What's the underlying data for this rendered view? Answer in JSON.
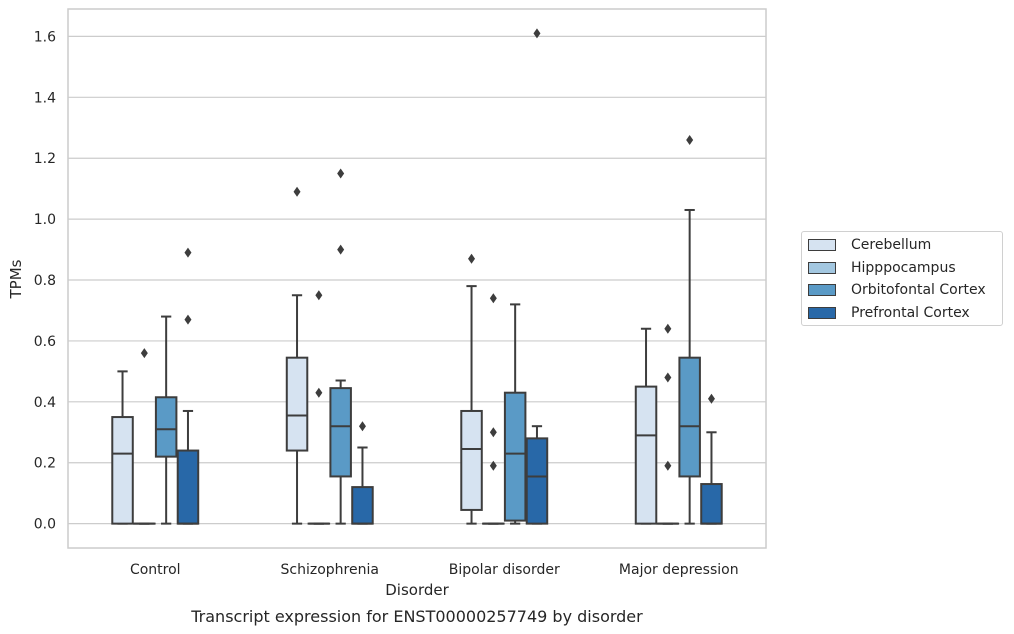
{
  "chart_data": {
    "type": "box",
    "caption": "Transcript expression for ENST00000257749 by disorder",
    "xlabel": "Disorder",
    "ylabel": "TPMs",
    "ylim": [
      -0.08,
      1.69
    ],
    "yticks": [
      0.0,
      0.2,
      0.4,
      0.6,
      0.8,
      1.0,
      1.2,
      1.4,
      1.6
    ],
    "ytick_labels": [
      "0.0",
      "0.2",
      "0.4",
      "0.6",
      "0.8",
      "1.0",
      "1.2",
      "1.4",
      "1.6"
    ],
    "grid": true,
    "legend_position": "right",
    "categories": [
      "Control",
      "Schizophrenia",
      "Bipolar disorder",
      "Major depression"
    ],
    "series": [
      {
        "name": "Cerebellum",
        "color": "#d6e3f1",
        "boxes": [
          {
            "whislo": 0.0,
            "q1": 0.0,
            "med": 0.23,
            "q3": 0.35,
            "whishi": 0.5,
            "fliers": []
          },
          {
            "whislo": 0.0,
            "q1": 0.24,
            "med": 0.355,
            "q3": 0.545,
            "whishi": 0.75,
            "fliers": [
              1.09
            ]
          },
          {
            "whislo": 0.0,
            "q1": 0.045,
            "med": 0.245,
            "q3": 0.37,
            "whishi": 0.78,
            "fliers": [
              0.87
            ]
          },
          {
            "whislo": 0.0,
            "q1": 0.0,
            "med": 0.29,
            "q3": 0.45,
            "whishi": 0.64,
            "fliers": []
          }
        ]
      },
      {
        "name": "Hipppocampus",
        "color": "#a3c7e0",
        "boxes": [
          {
            "whislo": 0.0,
            "q1": 0.0,
            "med": 0.0,
            "q3": 0.0,
            "whishi": 0.0,
            "fliers": [
              0.56
            ]
          },
          {
            "whislo": 0.0,
            "q1": 0.0,
            "med": 0.0,
            "q3": 0.0,
            "whishi": 0.0,
            "fliers": [
              0.43,
              0.75
            ]
          },
          {
            "whislo": 0.0,
            "q1": 0.0,
            "med": 0.0,
            "q3": 0.0,
            "whishi": 0.0,
            "fliers": [
              0.19,
              0.3,
              0.74
            ]
          },
          {
            "whislo": 0.0,
            "q1": 0.0,
            "med": 0.0,
            "q3": 0.0,
            "whishi": 0.0,
            "fliers": [
              0.19,
              0.48,
              0.64
            ]
          }
        ]
      },
      {
        "name": "Orbitofontal Cortex",
        "color": "#5a9ac6",
        "boxes": [
          {
            "whislo": 0.0,
            "q1": 0.22,
            "med": 0.31,
            "q3": 0.415,
            "whishi": 0.68,
            "fliers": []
          },
          {
            "whislo": 0.0,
            "q1": 0.155,
            "med": 0.32,
            "q3": 0.445,
            "whishi": 0.47,
            "fliers": [
              0.9,
              1.15
            ]
          },
          {
            "whislo": 0.0,
            "q1": 0.01,
            "med": 0.23,
            "q3": 0.43,
            "whishi": 0.72,
            "fliers": []
          },
          {
            "whislo": 0.0,
            "q1": 0.155,
            "med": 0.32,
            "q3": 0.545,
            "whishi": 1.03,
            "fliers": [
              1.26
            ]
          }
        ]
      },
      {
        "name": "Prefrontal Cortex",
        "color": "#2868a8",
        "boxes": [
          {
            "whislo": 0.0,
            "q1": 0.0,
            "med": 0.0,
            "q3": 0.24,
            "whishi": 0.37,
            "fliers": [
              0.67,
              0.89
            ]
          },
          {
            "whislo": 0.0,
            "q1": 0.0,
            "med": 0.0,
            "q3": 0.12,
            "whishi": 0.25,
            "fliers": [
              0.32
            ]
          },
          {
            "whislo": 0.0,
            "q1": 0.0,
            "med": 0.155,
            "q3": 0.28,
            "whishi": 0.32,
            "fliers": [
              1.61
            ]
          },
          {
            "whislo": 0.0,
            "q1": 0.0,
            "med": 0.0,
            "q3": 0.13,
            "whishi": 0.3,
            "fliers": [
              0.41
            ]
          }
        ]
      }
    ]
  }
}
